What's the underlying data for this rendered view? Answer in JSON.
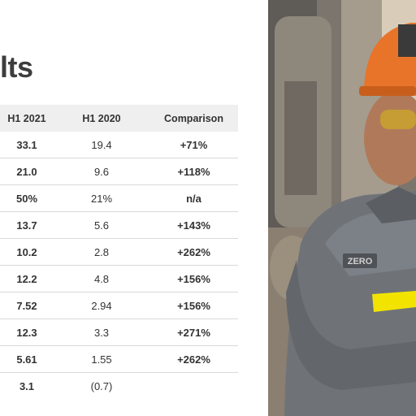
{
  "slide": {
    "title": "lts"
  },
  "table": {
    "columns": [
      "H1 2021",
      "H1 2020",
      "Comparison"
    ],
    "rows": [
      [
        "33.1",
        "19.4",
        "+71%"
      ],
      [
        "21.0",
        "9.6",
        "+118%"
      ],
      [
        "50%",
        "21%",
        "n/a"
      ],
      [
        "13.7",
        "5.6",
        "+143%"
      ],
      [
        "10.2",
        "2.8",
        "+262%"
      ],
      [
        "12.2",
        "4.8",
        "+156%"
      ],
      [
        "7.52",
        "2.94",
        "+156%"
      ],
      [
        "12.3",
        "3.3",
        "+271%"
      ],
      [
        "5.61",
        "1.55",
        "+262%"
      ],
      [
        "3.1",
        "(0.7)",
        ""
      ]
    ]
  },
  "photo": {
    "subject": "steel worker in orange hard hat and safety glasses wearing grey work jacket",
    "jacket_text": "ZERO",
    "colors": {
      "hardhat": "#e8742a",
      "jacket": "#6f7378",
      "stripe": "#f2e400",
      "background": "#8a8378"
    }
  }
}
